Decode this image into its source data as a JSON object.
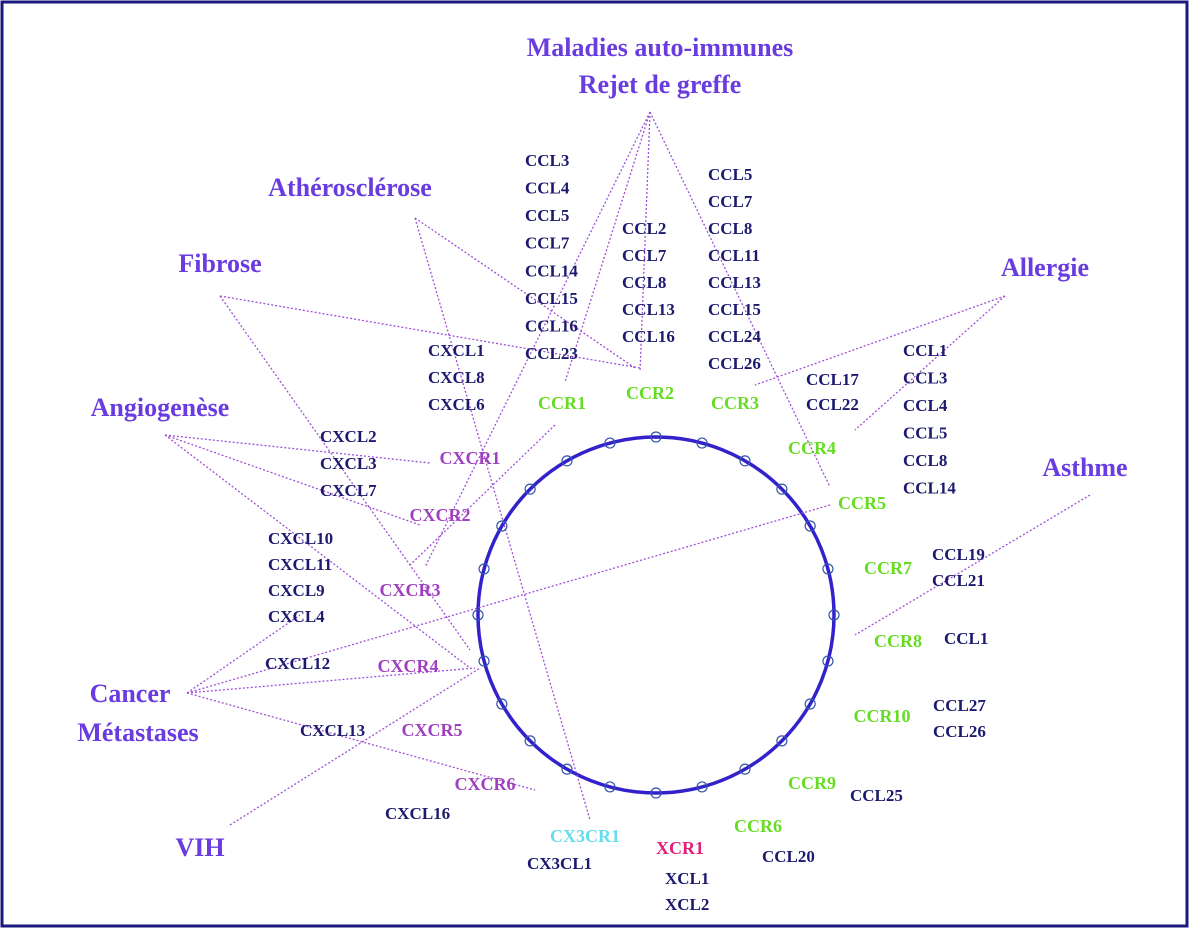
{
  "diseases": [
    "Maladies auto-immunes",
    "Rejet de greffe",
    "Athérosclérose",
    "Fibrose",
    "Allergie",
    "Angiogenèse",
    "Asthme",
    "Cancer",
    "Métastases",
    "VIH"
  ],
  "receptors": [
    {
      "label": "CCR1",
      "color": "#66dd22"
    },
    {
      "label": "CCR2",
      "color": "#66dd22"
    },
    {
      "label": "CCR3",
      "color": "#66dd22"
    },
    {
      "label": "CCR4",
      "color": "#66dd22"
    },
    {
      "label": "CCR5",
      "color": "#66dd22"
    },
    {
      "label": "CCR7",
      "color": "#66dd22"
    },
    {
      "label": "CCR8",
      "color": "#66dd22"
    },
    {
      "label": "CCR10",
      "color": "#66dd22"
    },
    {
      "label": "CCR9",
      "color": "#66dd22"
    },
    {
      "label": "CCR6",
      "color": "#66dd22"
    },
    {
      "label": "XCR1",
      "color": "#e0207a"
    },
    {
      "label": "CX3CR1",
      "color": "#66ddee"
    },
    {
      "label": "CXCR6",
      "color": "#a040c0"
    },
    {
      "label": "CXCR5",
      "color": "#a040c0"
    },
    {
      "label": "CXCR4",
      "color": "#a040c0"
    },
    {
      "label": "CXCR3",
      "color": "#a040c0"
    },
    {
      "label": "CXCR2",
      "color": "#a040c0"
    },
    {
      "label": "CXCR1",
      "color": "#a040c0"
    }
  ],
  "ligand_groups": [
    [
      "CCL3",
      "CCL4",
      "CCL5",
      "CCL7",
      "CCL14",
      "CCL15",
      "CCL16",
      "CCL23"
    ],
    [
      "CCL2",
      "CCL7",
      "CCL8",
      "CCL13",
      "CCL16"
    ],
    [
      "CCL5",
      "CCL7",
      "CCL8",
      "CCL11",
      "CCL13",
      "CCL15",
      "CCL24",
      "CCL26"
    ],
    [
      "CCL17",
      "CCL22"
    ],
    [
      "CCL1",
      "CCL3",
      "CCL4",
      "CCL5",
      "CCL8",
      "CCL14"
    ],
    [
      "CCL19",
      "CCL21"
    ],
    [
      "CCL1"
    ],
    [
      "CCL27",
      "CCL26"
    ],
    [
      "CCL25"
    ],
    [
      "CCL20"
    ],
    [
      "XCL1",
      "XCL2"
    ],
    [
      "CX3CL1"
    ],
    [
      "CXCL16"
    ],
    [
      "CXCL13"
    ],
    [
      "CXCL12"
    ],
    [
      "CXCL10",
      "CXCL11",
      "CXCL9",
      "CXCL4"
    ],
    [
      "CXCL2",
      "CXCL3",
      "CXCL7"
    ],
    [
      "CXCL1",
      "CXCL8",
      "CXCL6"
    ]
  ]
}
